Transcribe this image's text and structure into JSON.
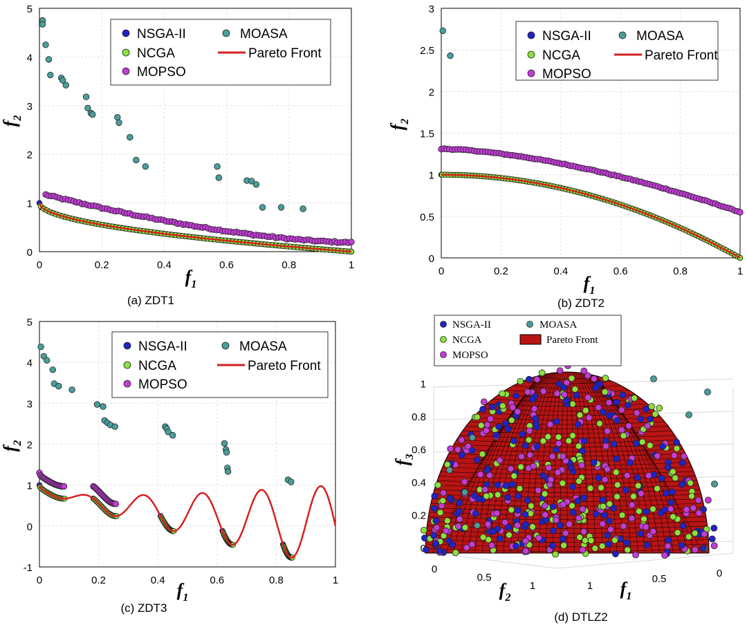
{
  "colors": {
    "nsga": "#2222c8",
    "ncga": "#8ce03c",
    "mopso": "#c23cd6",
    "moasa": "#4a9e9b",
    "front": "#d62020",
    "grid": "#d9d9d9"
  },
  "legend_labels": {
    "nsga": "NSGA-II",
    "ncga": "NCGA",
    "mopso": "MOPSO",
    "moasa": "MOASA",
    "front": "Pareto Front"
  },
  "chart_data": [
    {
      "id": "zdt1",
      "type": "scatter",
      "title": "ZDT1",
      "caption_tag": "(a)",
      "caption_name": "ZDT1",
      "xlabel": "f",
      "xsub": "1",
      "ylabel": "f",
      "ysub": "2",
      "xlim": [
        0,
        1
      ],
      "ylim": [
        0,
        5
      ],
      "xticks": [
        "0",
        "0.2",
        "0.4",
        "0.6",
        "0.8",
        "1"
      ],
      "yticks": [
        "0",
        "1",
        "2",
        "3",
        "4",
        "5"
      ],
      "legend_position": "top-right",
      "front_function": "1 - sqrt(f1)",
      "series": [
        {
          "name": "MOASA",
          "key": "moasa",
          "points": [
            [
              0.01,
              4.75
            ],
            [
              0.01,
              4.67
            ],
            [
              0.02,
              4.25
            ],
            [
              0.03,
              3.95
            ],
            [
              0.035,
              3.63
            ],
            [
              0.07,
              3.57
            ],
            [
              0.075,
              3.52
            ],
            [
              0.085,
              3.42
            ],
            [
              0.15,
              3.18
            ],
            [
              0.155,
              2.95
            ],
            [
              0.165,
              2.85
            ],
            [
              0.17,
              2.82
            ],
            [
              0.25,
              2.76
            ],
            [
              0.255,
              2.65
            ],
            [
              0.29,
              2.35
            ],
            [
              0.31,
              1.88
            ],
            [
              0.34,
              1.75
            ],
            [
              0.57,
              1.75
            ],
            [
              0.575,
              1.52
            ],
            [
              0.665,
              1.46
            ],
            [
              0.68,
              1.45
            ],
            [
              0.695,
              1.38
            ],
            [
              0.715,
              0.91
            ],
            [
              0.775,
              0.91
            ],
            [
              0.845,
              0.88
            ]
          ]
        },
        {
          "name": "MOPSO",
          "key": "mopso",
          "band": {
            "x0": 0.02,
            "x1": 1.0,
            "y0": 1.17,
            "y1": 0.19,
            "shape": "convex",
            "n": 110
          }
        },
        {
          "name": "NSGA-II",
          "key": "nsga",
          "on_front": true,
          "n": 90
        },
        {
          "name": "NCGA",
          "key": "ncga",
          "on_front": true,
          "n": 90
        }
      ]
    },
    {
      "id": "zdt2",
      "type": "scatter",
      "title": "ZDT2",
      "caption_tag": "(b)",
      "caption_name": "ZDT2",
      "xlabel": "f",
      "xsub": "1",
      "ylabel": "f",
      "ysub": "2",
      "xlim": [
        0,
        1
      ],
      "ylim": [
        0,
        3
      ],
      "xticks": [
        "0",
        "0.2",
        "0.4",
        "0.6",
        "0.8",
        "1"
      ],
      "yticks": [
        "0",
        "0.5",
        "1",
        "1.5",
        "2",
        "2.5",
        "3"
      ],
      "legend_position": "top-right",
      "front_function": "1 - f1^2",
      "series": [
        {
          "name": "MOASA",
          "key": "moasa",
          "points": [
            [
              0.005,
              2.73
            ],
            [
              0.03,
              2.43
            ]
          ]
        },
        {
          "name": "MOPSO",
          "key": "mopso",
          "band": {
            "x0": 0.0,
            "x1": 1.0,
            "y0": 1.31,
            "y1": 0.55,
            "shape": "concave",
            "n": 110
          }
        },
        {
          "name": "NSGA-II",
          "key": "nsga",
          "on_front": true,
          "n": 100
        },
        {
          "name": "NCGA",
          "key": "ncga",
          "on_front": true,
          "n": 100
        }
      ]
    },
    {
      "id": "zdt3",
      "type": "scatter",
      "title": "ZDT3",
      "caption_tag": "(c)",
      "caption_name": "ZDT3",
      "xlabel": "f",
      "xsub": "1",
      "ylabel": "f",
      "ysub": "2",
      "xlim": [
        0,
        1
      ],
      "ylim": [
        -1,
        5
      ],
      "xticks": [
        "0",
        "0.2",
        "0.4",
        "0.6",
        "0.8",
        "1"
      ],
      "yticks": [
        "-1",
        "0",
        "1",
        "2",
        "3",
        "4",
        "5"
      ],
      "legend_position": "top-right",
      "front_function": "1 - sqrt(f1) - f1*sin(10*pi*f1)",
      "segments": [
        [
          0.0,
          0.083
        ],
        [
          0.182,
          0.258
        ],
        [
          0.409,
          0.452
        ],
        [
          0.618,
          0.652
        ],
        [
          0.823,
          0.852
        ]
      ],
      "series": [
        {
          "name": "MOASA",
          "key": "moasa",
          "points": [
            [
              0.005,
              4.38
            ],
            [
              0.015,
              4.15
            ],
            [
              0.025,
              4.05
            ],
            [
              0.045,
              3.82
            ],
            [
              0.05,
              3.48
            ],
            [
              0.065,
              3.42
            ],
            [
              0.11,
              3.33
            ],
            [
              0.195,
              2.97
            ],
            [
              0.215,
              2.92
            ],
            [
              0.22,
              2.58
            ],
            [
              0.23,
              2.52
            ],
            [
              0.24,
              2.47
            ],
            [
              0.255,
              2.43
            ],
            [
              0.425,
              2.43
            ],
            [
              0.43,
              2.38
            ],
            [
              0.435,
              2.3
            ],
            [
              0.45,
              2.22
            ],
            [
              0.625,
              2.02
            ],
            [
              0.63,
              1.87
            ],
            [
              0.632,
              1.8
            ],
            [
              0.635,
              1.42
            ],
            [
              0.637,
              1.33
            ],
            [
              0.84,
              1.13
            ],
            [
              0.85,
              1.08
            ]
          ]
        },
        {
          "name": "MOPSO",
          "key": "mopso",
          "offset": 0.3,
          "n_per_segment": 22
        },
        {
          "name": "NSGA-II",
          "key": "nsga",
          "on_front": true,
          "n_per_segment": 20
        },
        {
          "name": "NCGA",
          "key": "ncga",
          "on_front": true,
          "n_per_segment": 20
        }
      ]
    },
    {
      "id": "dtlz2",
      "type": "scatter",
      "title": "DTLZ2",
      "caption_tag": "(d)",
      "caption_name": "DTLZ2",
      "zlabel": "f",
      "zsub": "3",
      "xlabel": "f",
      "xsub": "1",
      "ylabel": "f",
      "ysub": "2",
      "zticks": [
        "0",
        "0.2",
        "0.4",
        "0.6",
        "0.8",
        "1"
      ],
      "f1ticks": [
        "1",
        "0.5",
        "0"
      ],
      "f2ticks": [
        "0",
        "0.5",
        "1"
      ],
      "legend_position": "top-left",
      "surface": "unit sphere octant",
      "series": [
        {
          "name": "NSGA-II",
          "key": "nsga",
          "n": 170
        },
        {
          "name": "NCGA",
          "key": "ncga",
          "n": 150
        },
        {
          "name": "MOPSO",
          "key": "mopso",
          "n": 170
        },
        {
          "name": "MOASA",
          "key": "moasa",
          "n": 12
        }
      ]
    }
  ]
}
